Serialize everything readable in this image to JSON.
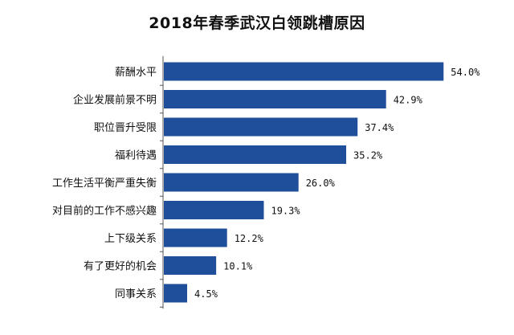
{
  "chart_data": {
    "type": "bar",
    "orientation": "horizontal",
    "title": "2018年春季武汉白领跳槽原因",
    "categories": [
      "薪酬水平",
      "企业发展前景不明",
      "职位晋升受限",
      "福利待遇",
      "工作生活平衡严重失衡",
      "对目前的工作不感兴趣",
      "上下级关系",
      "有了更好的机会",
      "同事关系"
    ],
    "values": [
      54.0,
      42.9,
      37.4,
      35.2,
      26.0,
      19.3,
      12.2,
      10.1,
      4.5
    ],
    "value_labels": [
      "54.0%",
      "42.9%",
      "37.4%",
      "35.2%",
      "26.0%",
      "19.3%",
      "12.2%",
      "10.1%",
      "4.5%"
    ],
    "xlim": [
      0,
      60
    ],
    "grid": false,
    "legend": "none",
    "bar_color": "#1f4e9a"
  }
}
